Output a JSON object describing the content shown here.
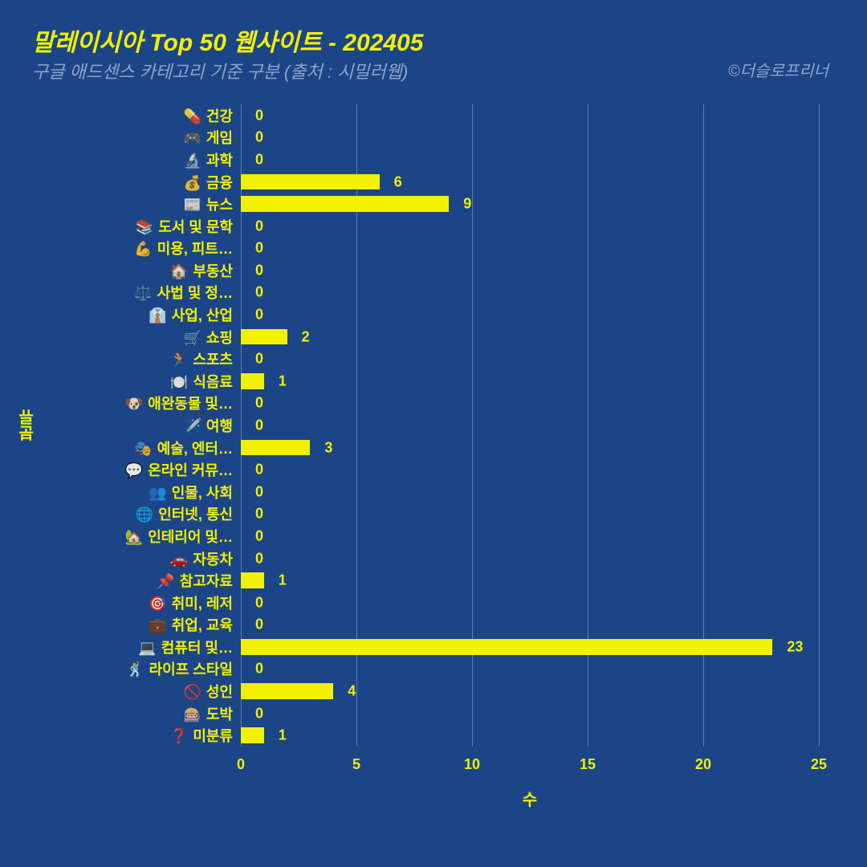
{
  "title": "말레이시아 Top 50 웹사이트 - 202405",
  "subtitle": "구글 애드센스 카테고리 기준 구분 (출처 : 시밀러웹)",
  "credit": "©더슬로프리너",
  "chart": {
    "type": "bar-horizontal",
    "background_color": "#1c4587",
    "bar_color": "#f1f100",
    "grid_color": "#5b7db8",
    "title_color": "#f1f100",
    "subtitle_color": "#8ea5cc",
    "label_color": "#f1f100",
    "xlim": [
      0,
      25
    ],
    "xtick_step": 5,
    "xlabel": "수",
    "ylabel": "분류",
    "xticks": [
      0,
      5,
      10,
      15,
      20,
      25
    ],
    "categories": [
      {
        "emoji": "💊",
        "label": "건강",
        "value": 0
      },
      {
        "emoji": "🎮",
        "label": "게임",
        "value": 0
      },
      {
        "emoji": "🔬",
        "label": "과학",
        "value": 0
      },
      {
        "emoji": "💰",
        "label": "금융",
        "value": 6
      },
      {
        "emoji": "📰",
        "label": "뉴스",
        "value": 9
      },
      {
        "emoji": "📚",
        "label": "도서 및 문학",
        "value": 0
      },
      {
        "emoji": "💪",
        "label": "미용, 피트…",
        "value": 0
      },
      {
        "emoji": "🏠",
        "label": "부동산",
        "value": 0
      },
      {
        "emoji": "⚖️",
        "label": "사법 및 정…",
        "value": 0
      },
      {
        "emoji": "👔",
        "label": "사업, 산업",
        "value": 0
      },
      {
        "emoji": "🛒",
        "label": "쇼핑",
        "value": 2
      },
      {
        "emoji": "🏃",
        "label": "스포츠",
        "value": 0
      },
      {
        "emoji": "🍽️",
        "label": "식음료",
        "value": 1
      },
      {
        "emoji": "🐶",
        "label": "애완동물 및…",
        "value": 0
      },
      {
        "emoji": "✈️",
        "label": "여행",
        "value": 0
      },
      {
        "emoji": "🎭",
        "label": "예술, 엔터…",
        "value": 3
      },
      {
        "emoji": "💬",
        "label": "온라인 커뮤…",
        "value": 0
      },
      {
        "emoji": "👥",
        "label": "인물, 사회",
        "value": 0
      },
      {
        "emoji": "🌐",
        "label": "인터넷, 통신",
        "value": 0
      },
      {
        "emoji": "🏡",
        "label": "인테리어 및…",
        "value": 0
      },
      {
        "emoji": "🚗",
        "label": "자동차",
        "value": 0
      },
      {
        "emoji": "📌",
        "label": "참고자료",
        "value": 1
      },
      {
        "emoji": "🎯",
        "label": "취미, 레저",
        "value": 0
      },
      {
        "emoji": "💼",
        "label": "취업, 교육",
        "value": 0
      },
      {
        "emoji": "💻",
        "label": "컴퓨터 및…",
        "value": 23
      },
      {
        "emoji": "🕺",
        "label": "라이프 스타일",
        "value": 0
      },
      {
        "emoji": "🚫",
        "label": "성인",
        "value": 4
      },
      {
        "emoji": "🎰",
        "label": "도박",
        "value": 0
      },
      {
        "emoji": "❓",
        "label": "미분류",
        "value": 1
      }
    ]
  }
}
